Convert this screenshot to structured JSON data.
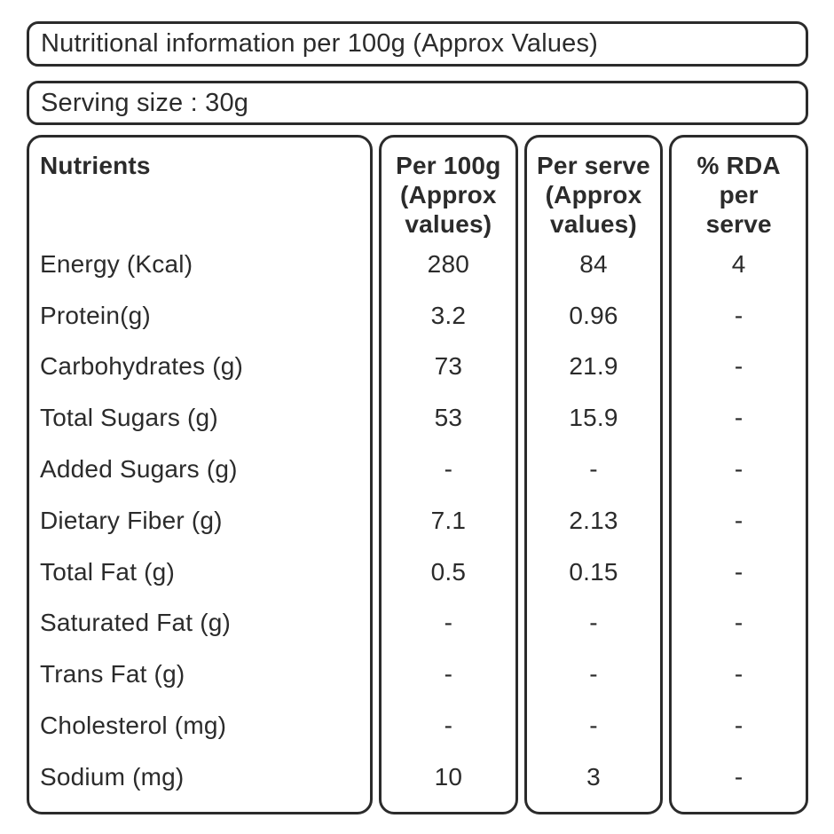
{
  "colors": {
    "border": "#2b2b2b",
    "text": "#2b2b2b",
    "background": "#ffffff"
  },
  "info_banner": {
    "text": "Nutritional information per 100g (Approx Values)"
  },
  "serving_banner": {
    "text": "Serving size : 30g"
  },
  "table": {
    "col_headers": {
      "nutrients": "Nutrients",
      "per_100g": [
        "Per 100g",
        "(Approx",
        "values)"
      ],
      "per_serve": [
        "Per serve",
        "(Approx",
        "values)"
      ],
      "rda": [
        "% RDA",
        "per",
        "serve"
      ]
    },
    "rows": [
      {
        "nutrient": "Energy (Kcal)",
        "per_100g": "280",
        "per_serve": "84",
        "rda_per_serve": "4"
      },
      {
        "nutrient": "Protein(g)",
        "per_100g": "3.2",
        "per_serve": "0.96",
        "rda_per_serve": "-"
      },
      {
        "nutrient": "Carbohydrates (g)",
        "per_100g": "73",
        "per_serve": "21.9",
        "rda_per_serve": "-"
      },
      {
        "nutrient": "Total Sugars (g)",
        "per_100g": "53",
        "per_serve": "15.9",
        "rda_per_serve": "-"
      },
      {
        "nutrient": "Added Sugars (g)",
        "per_100g": "-",
        "per_serve": "-",
        "rda_per_serve": "-"
      },
      {
        "nutrient": "Dietary Fiber (g)",
        "per_100g": "7.1",
        "per_serve": "2.13",
        "rda_per_serve": "-"
      },
      {
        "nutrient": "Total Fat (g)",
        "per_100g": "0.5",
        "per_serve": "0.15",
        "rda_per_serve": "-"
      },
      {
        "nutrient": "Saturated Fat (g)",
        "per_100g": "-",
        "per_serve": "-",
        "rda_per_serve": "-"
      },
      {
        "nutrient": "Trans Fat (g)",
        "per_100g": "-",
        "per_serve": "-",
        "rda_per_serve": "-"
      },
      {
        "nutrient": "Cholesterol (mg)",
        "per_100g": "-",
        "per_serve": "-",
        "rda_per_serve": "-"
      },
      {
        "nutrient": "Sodium (mg)",
        "per_100g": "10",
        "per_serve": "3",
        "rda_per_serve": "-"
      }
    ]
  }
}
